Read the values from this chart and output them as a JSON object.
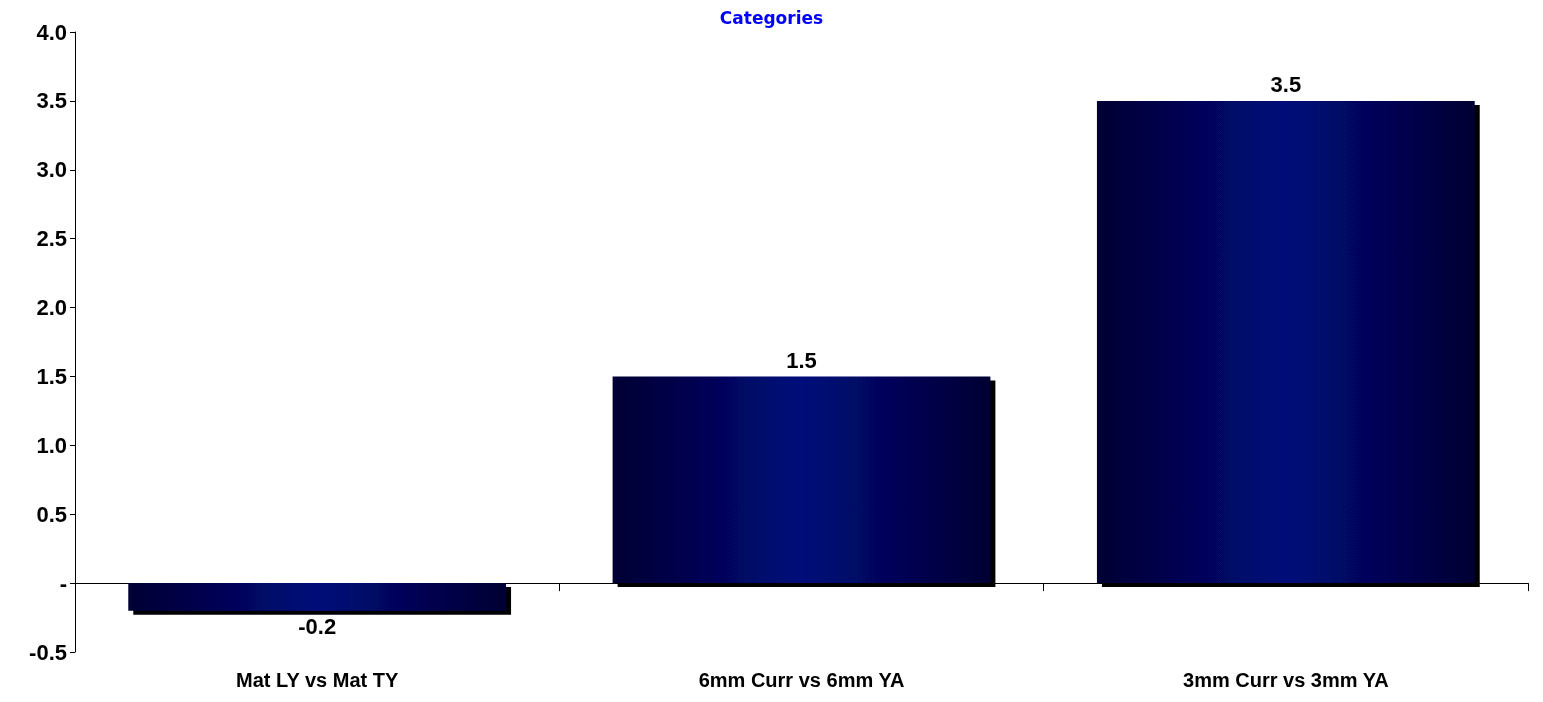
{
  "chart_data": {
    "type": "bar",
    "title": "Categories",
    "categories": [
      "Mat LY vs Mat TY",
      "6mm Curr vs 6mm YA",
      "3mm Curr vs 3mm YA"
    ],
    "values": [
      -0.2,
      1.5,
      3.5
    ],
    "color": "#000a7a",
    "ylim": [
      -0.5,
      4.0
    ],
    "yticks": [
      {
        "value": -0.5,
        "label": "-0.5"
      },
      {
        "value": 0,
        "label": "-"
      },
      {
        "value": 0.5,
        "label": "0.5"
      },
      {
        "value": 1,
        "label": "1.0"
      },
      {
        "value": 1.5,
        "label": "1.5"
      },
      {
        "value": 2,
        "label": "2.0"
      },
      {
        "value": 2.5,
        "label": "2.5"
      },
      {
        "value": 3,
        "label": "3.0"
      },
      {
        "value": 3.5,
        "label": "3.5"
      },
      {
        "value": 4,
        "label": "4.0"
      }
    ],
    "data_labels": true
  }
}
